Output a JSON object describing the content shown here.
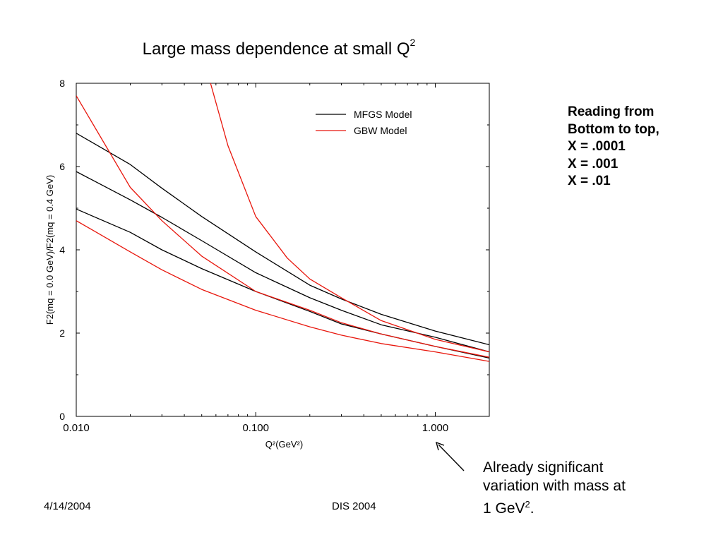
{
  "slide": {
    "title_main": "Large mass dependence at small Q",
    "title_sup": "2",
    "footer_date": "4/14/2004",
    "footer_conference": "DIS 2004"
  },
  "notes": {
    "lines": [
      "Reading from",
      "Bottom to top,",
      "X = .0001",
      "X = .001",
      "X = .01"
    ]
  },
  "annotation": {
    "line1": "Already significant",
    "line2": "variation with mass at",
    "line3_prefix": "1 GeV",
    "line3_sup": "2",
    "line3_suffix": "."
  },
  "colors": {
    "mfgs": "#000000",
    "gbw": "#e8160c",
    "axis": "#000000"
  },
  "chart_data": {
    "type": "line",
    "title": "Large mass dependence at small Q^2",
    "xlabel": "Q²(GeV²)",
    "ylabel": "F2(mq = 0.0 GeV)/F2(mq = 0.4 GeV)",
    "xscale": "log",
    "xlim": [
      0.01,
      2.0
    ],
    "ylim": [
      0,
      8
    ],
    "xticks": [
      0.01,
      0.1,
      1.0
    ],
    "xtick_labels": [
      "0.010",
      "0.100",
      "1.000"
    ],
    "yticks": [
      0,
      2,
      4,
      6,
      8
    ],
    "ytick_labels": [
      "0",
      "2",
      "4",
      "6",
      "8"
    ],
    "legend": {
      "position": "top-right",
      "entries": [
        {
          "label": "MFGS Model",
          "color": "#000000"
        },
        {
          "label": "GBW Model",
          "color": "#e8160c"
        }
      ]
    },
    "series": [
      {
        "model": "MFGS Model",
        "color": "#000000",
        "x": [
          0.01,
          0.02,
          0.03,
          0.05,
          0.1,
          0.2,
          0.3,
          0.5,
          1.0,
          2.0
        ],
        "y": [
          4.98,
          4.42,
          4.0,
          3.55,
          3.0,
          2.52,
          2.22,
          1.98,
          1.68,
          1.4
        ]
      },
      {
        "model": "MFGS Model",
        "color": "#000000",
        "x": [
          0.01,
          0.02,
          0.03,
          0.05,
          0.1,
          0.2,
          0.3,
          0.5,
          1.0,
          2.0
        ],
        "y": [
          5.88,
          5.2,
          4.78,
          4.22,
          3.45,
          2.85,
          2.55,
          2.2,
          1.9,
          1.55
        ]
      },
      {
        "model": "MFGS Model",
        "color": "#000000",
        "x": [
          0.01,
          0.02,
          0.03,
          0.05,
          0.1,
          0.2,
          0.3,
          0.5,
          1.0,
          2.0
        ],
        "y": [
          6.8,
          6.05,
          5.48,
          4.8,
          3.95,
          3.15,
          2.82,
          2.45,
          2.05,
          1.72
        ]
      },
      {
        "model": "GBW Model",
        "color": "#e8160c",
        "x": [
          0.01,
          0.02,
          0.03,
          0.05,
          0.1,
          0.2,
          0.3,
          0.5,
          1.0,
          2.0
        ],
        "y": [
          4.7,
          3.95,
          3.52,
          3.05,
          2.55,
          2.15,
          1.95,
          1.75,
          1.55,
          1.32
        ]
      },
      {
        "model": "GBW Model",
        "color": "#e8160c",
        "x": [
          0.01,
          0.02,
          0.03,
          0.05,
          0.1,
          0.2,
          0.3,
          0.5,
          1.0,
          2.0
        ],
        "y": [
          7.7,
          5.5,
          4.7,
          3.85,
          3.0,
          2.55,
          2.25,
          1.98,
          1.68,
          1.42
        ]
      },
      {
        "model": "GBW Model",
        "color": "#e8160c",
        "x": [
          0.056,
          0.07,
          0.1,
          0.15,
          0.2,
          0.3,
          0.5,
          1.0,
          2.0
        ],
        "y": [
          8.0,
          6.5,
          4.8,
          3.8,
          3.3,
          2.85,
          2.3,
          1.85,
          1.55
        ]
      }
    ]
  }
}
